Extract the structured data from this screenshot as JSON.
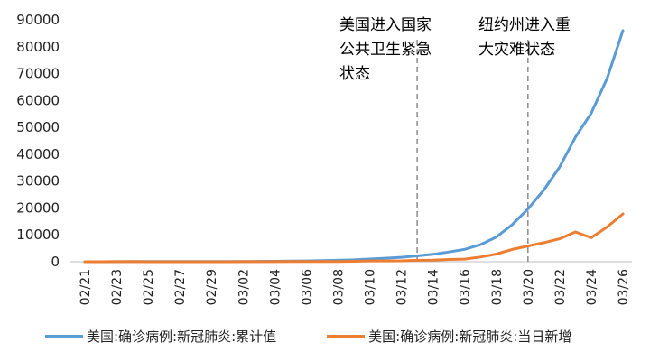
{
  "chart_data": {
    "type": "line",
    "title": "",
    "xlabel": "",
    "ylabel": "",
    "x": [
      "02/21",
      "02/22",
      "02/23",
      "02/24",
      "02/25",
      "02/26",
      "02/27",
      "02/28",
      "02/29",
      "03/01",
      "03/02",
      "03/03",
      "03/04",
      "03/05",
      "03/06",
      "03/07",
      "03/08",
      "03/09",
      "03/10",
      "03/11",
      "03/12",
      "03/13",
      "03/14",
      "03/15",
      "03/16",
      "03/17",
      "03/18",
      "03/19",
      "03/20",
      "03/21",
      "03/22",
      "03/23",
      "03/24",
      "03/25",
      "03/26"
    ],
    "x_tick_labels": [
      "02/21",
      "02/23",
      "02/25",
      "02/27",
      "02/29",
      "03/02",
      "03/04",
      "03/06",
      "03/08",
      "03/10",
      "03/12",
      "03/14",
      "03/16",
      "03/18",
      "03/20",
      "03/22",
      "03/24",
      "03/26"
    ],
    "ylim": [
      0,
      90000
    ],
    "y_ticks": [
      "0",
      "10000",
      "20000",
      "30000",
      "40000",
      "50000",
      "60000",
      "70000",
      "80000",
      "90000"
    ],
    "grid": false,
    "legend_position": "bottom",
    "series": [
      {
        "name": "美国:确诊病例:新冠肺炎:累计值",
        "color": "#5B9BD5",
        "values": [
          15,
          15,
          35,
          53,
          57,
          60,
          60,
          62,
          68,
          74,
          100,
          124,
          158,
          221,
          319,
          435,
          541,
          704,
          994,
          1301,
          1630,
          2183,
          2770,
          3613,
          4590,
          6344,
          9197,
          13779,
          19616,
          26711,
          35241,
          46332,
          55268,
          68211,
          85996
        ]
      },
      {
        "name": "美国:确诊病例:新冠肺炎:当日新增",
        "color": "#ED7D31",
        "values": [
          0,
          0,
          20,
          18,
          4,
          3,
          0,
          2,
          6,
          6,
          26,
          24,
          34,
          63,
          98,
          116,
          106,
          163,
          290,
          307,
          329,
          553,
          587,
          843,
          977,
          1754,
          2853,
          4582,
          5837,
          7095,
          8530,
          11091,
          8936,
          12943,
          17785
        ]
      }
    ],
    "annotations": [
      {
        "lines": [
          "美国进入国家",
          "公共卫生紧急",
          "状态"
        ],
        "x": "03/13"
      },
      {
        "lines": [
          "纽约州进入重",
          "大灾难状态"
        ],
        "x": "03/20"
      }
    ]
  },
  "legend": [
    {
      "label": "美国:确诊病例:新冠肺炎:累计值",
      "color": "#5B9BD5"
    },
    {
      "label": "美国:确诊病例:新冠肺炎:当日新增",
      "color": "#ED7D31"
    }
  ]
}
